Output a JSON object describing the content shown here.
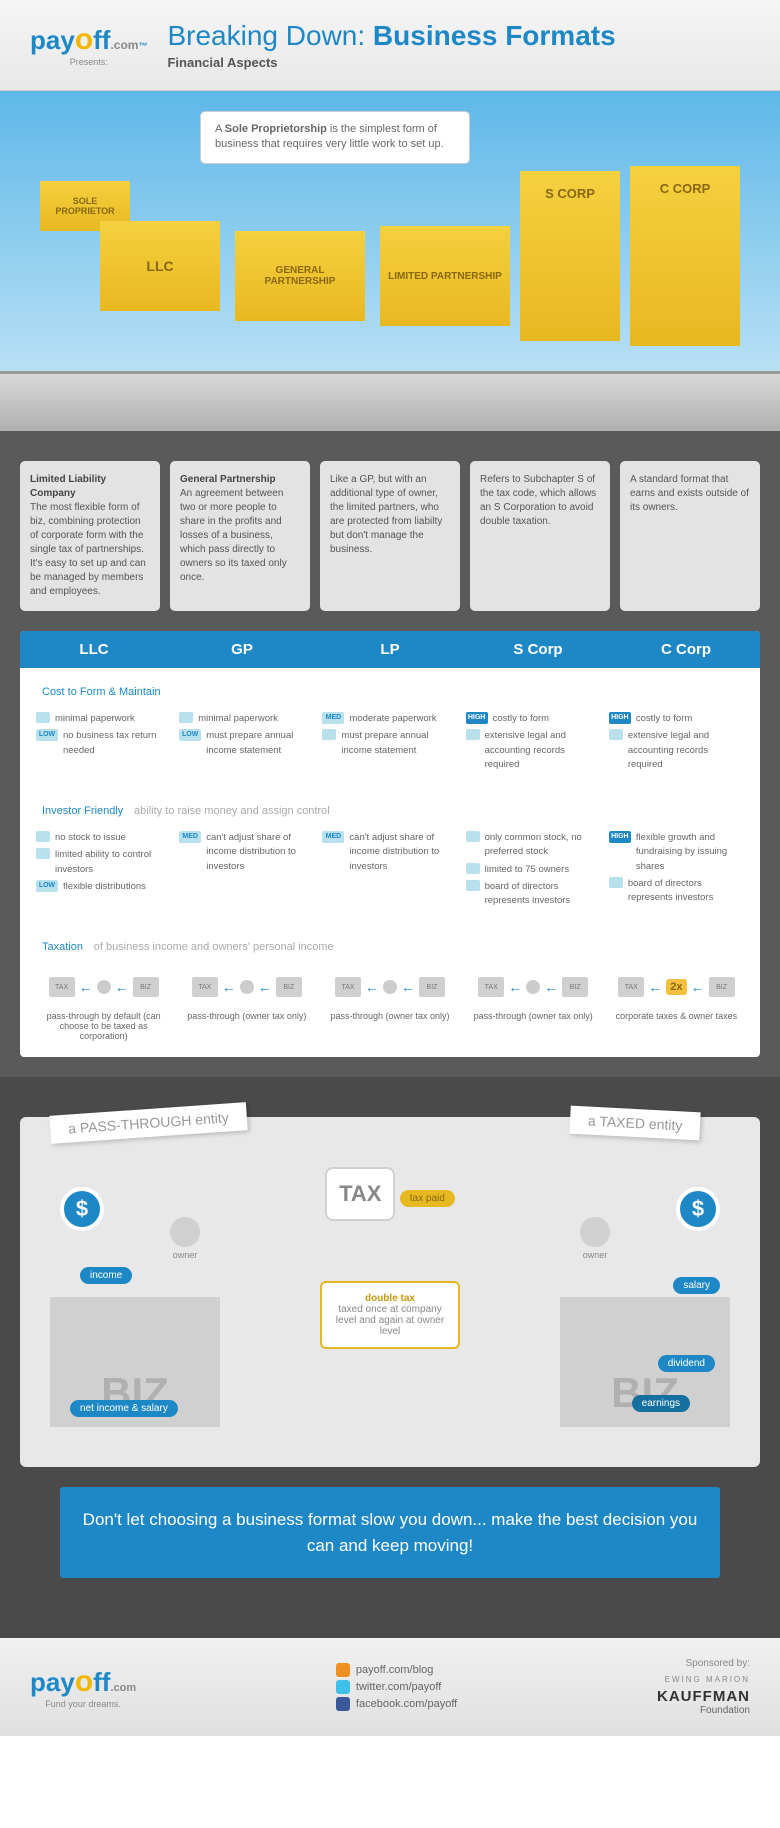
{
  "header": {
    "logo_text": "payoff",
    "logo_suffix": ".com",
    "logo_tm": "™",
    "presents": "Presents:",
    "title_pre": "Breaking Down: ",
    "title_bold": "Business Formats",
    "subtitle": "Financial Aspects"
  },
  "callout": {
    "bold": "Sole Proprietorship",
    "text_pre": "A ",
    "text_post": " is the simplest form of business that requires very little work to set up."
  },
  "buildings": {
    "b1": "SOLE PROPRIETOR",
    "b2": "LLC",
    "b3": "GENERAL PARTNERSHIP",
    "b4": "LIMITED PARTNERSHIP",
    "b5": "S CORP",
    "b6": "C CORP"
  },
  "descs": [
    {
      "bold": "Limited Liability Company",
      "text": "The most flexible form of biz, combining protection of corporate form with the single tax of partnerships. It's easy to set up and can be managed by members and employees."
    },
    {
      "bold": "General Partnership",
      "text": "An agreement between two or more people to share in the profits and losses of a business, which pass directly to owners so its taxed only once."
    },
    {
      "bold": "",
      "text": "Like a GP, but with an additional type of owner, the limited partners, who are protected from liabilty but don't manage the business."
    },
    {
      "bold": "",
      "text": "Refers to Subchapter S of the tax code, which allows an S Corporation to avoid double taxation."
    },
    {
      "bold": "",
      "text": "A standard format that earns and exists outside of its owners."
    }
  ],
  "cols": [
    "LLC",
    "GP",
    "LP",
    "S Corp",
    "C Corp"
  ],
  "sections": {
    "cost": {
      "title": "Cost to Form & Maintain",
      "sub": ""
    },
    "investor": {
      "title": "Investor Friendly",
      "sub": "ability to raise money and assign control"
    },
    "tax": {
      "title": "Taxation",
      "sub": "of business income and owners' personal income"
    }
  },
  "cost": [
    [
      {
        "b": "",
        "t": "minimal paperwork"
      },
      {
        "b": "LOW",
        "t": "no business tax return needed"
      }
    ],
    [
      {
        "b": "",
        "t": "minimal paperwork"
      },
      {
        "b": "LOW",
        "t": "must prepare annual income statement"
      }
    ],
    [
      {
        "b": "MED",
        "t": "moderate paperwork"
      },
      {
        "b": "",
        "t": "must prepare annual income statement"
      }
    ],
    [
      {
        "b": "HIGH",
        "t": "costly to form"
      },
      {
        "b": "",
        "t": "extensive legal and accounting records required"
      }
    ],
    [
      {
        "b": "HIGH",
        "t": "costly to form"
      },
      {
        "b": "",
        "t": "extensive legal and accounting records required"
      }
    ]
  ],
  "investor": [
    [
      {
        "b": "",
        "t": "no stock to issue"
      },
      {
        "b": "",
        "t": "limited ability to control investors"
      },
      {
        "b": "LOW",
        "t": "flexible distributions"
      }
    ],
    [
      {
        "b": "MED",
        "t": "can't adjust share of income distribution to investors"
      }
    ],
    [
      {
        "b": "MED",
        "t": "can't adjust share of income distribution to investors"
      }
    ],
    [
      {
        "b": "",
        "t": "only common stock, no preferred stock"
      },
      {
        "b": "",
        "t": "limited to 75 owners"
      },
      {
        "b": "",
        "t": "board of directors represents investors"
      }
    ],
    [
      {
        "b": "HIGH",
        "t": "flexible growth and fundraising by issuing shares"
      },
      {
        "b": "",
        "t": "board of directors represents investors"
      }
    ]
  ],
  "taxation": [
    {
      "label": "pass-through by default (can choose to be taxed as corporation)",
      "x2": false
    },
    {
      "label": "pass-through (owner tax only)",
      "x2": false
    },
    {
      "label": "pass-through (owner tax only)",
      "x2": false
    },
    {
      "label": "pass-through (owner tax only)",
      "x2": false
    },
    {
      "label": "corporate taxes & owner taxes",
      "x2": true
    }
  ],
  "flow": {
    "banner_l": "a PASS-THROUGH entity",
    "banner_r": "a TAXED entity",
    "tax_label": "TAX",
    "biz_label": "BIZ",
    "owner": "owner",
    "income": "income",
    "net": "net income & salary",
    "tax_paid": "tax paid",
    "salary": "salary",
    "dividend": "dividend",
    "earnings": "earnings",
    "double_bold": "double tax",
    "double_text": "taxed once at company level and again at owner level"
  },
  "cta": "Don't let choosing a business format slow you down... make the best decision you can and keep moving!",
  "footer": {
    "logo": "payoff",
    "logo_suffix": ".com",
    "tagline": "Fund your dreams.",
    "links": [
      "payoff.com/blog",
      "twitter.com/payoff",
      "facebook.com/payoff"
    ],
    "sponsored": "Sponsored by:",
    "sponsor_pre": "EWING MARION",
    "sponsor": "KAUFFMAN",
    "sponsor_sub": "Foundation"
  },
  "colors": {
    "primary": "#1e88c7",
    "yellow": "#e8b820",
    "gray_dark": "#4a4a4a"
  }
}
